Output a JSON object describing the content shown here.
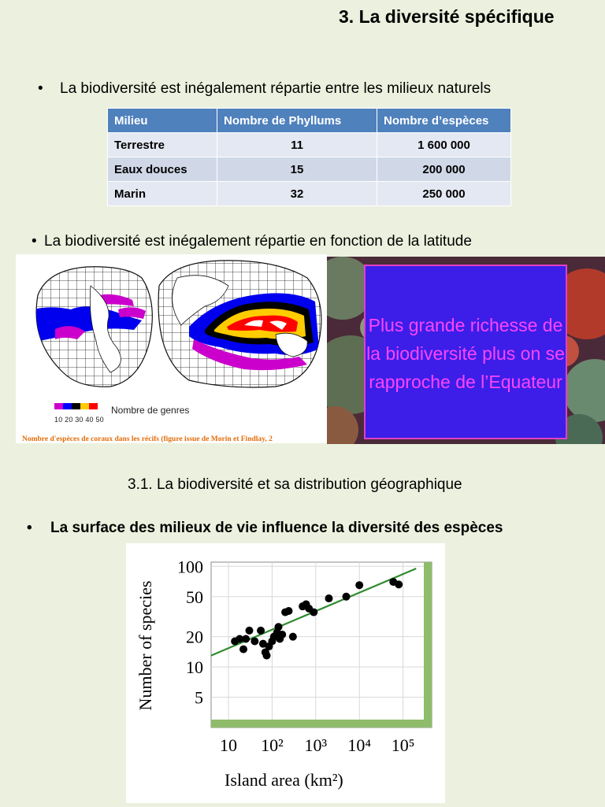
{
  "title": "3. La diversité spécifique",
  "bullets": {
    "milieux": "La biodiversité est inégalement répartie entre les milieux naturels",
    "latitude": "La biodiversité est inégalement répartie en fonction de la latitude",
    "surface": "La surface des milieux de vie influence la diversité des espèces"
  },
  "bullet_symbol": "•",
  "section_31": "3.1. La biodiversité et sa distribution géographique",
  "table": {
    "headers": [
      "Milieu",
      "Nombre de Phyllums",
      "Nombre d’espèces"
    ],
    "rows": [
      [
        "Terrestre",
        "11",
        "1 600 000"
      ],
      [
        "Eaux douces",
        "15",
        "200 000"
      ],
      [
        "Marin",
        "32",
        "250 000"
      ]
    ]
  },
  "coral_map": {
    "legend_label": "Nombre de genres",
    "legend_ticks": "10 20 30 40 50",
    "legend_colors": [
      "#cc00cc",
      "#0000ff",
      "#000000",
      "#ffcc00",
      "#ff0000"
    ],
    "caption": "Nombre d'espèces de coraux dans les récifs (figure issue de Morin et Findlay, 2"
  },
  "callout": {
    "text": "Plus grande richesse de la biodiversité plus on se rapproche de l’Equateur",
    "bg_color": "#3c1ee8",
    "text_color": "#ff44ff"
  },
  "chart_data": {
    "type": "scatter",
    "title": "",
    "xlabel": "Island area (km²)",
    "ylabel": "Number of species",
    "x_scale": "log",
    "y_scale": "log",
    "xlim": [
      4,
      300000
    ],
    "ylim": [
      3,
      110
    ],
    "x_ticks": [
      10,
      100,
      1000,
      10000,
      100000
    ],
    "x_tick_labels": [
      "10",
      "10²",
      "10³",
      "10⁴",
      "10⁵"
    ],
    "y_ticks": [
      5,
      10,
      20,
      50,
      100
    ],
    "y_tick_labels": [
      "5",
      "10",
      "20",
      "50",
      "100"
    ],
    "grid": true,
    "point_color": "#000000",
    "line_color": "#2e8b2e",
    "points": [
      [
        14,
        18
      ],
      [
        18,
        19
      ],
      [
        22,
        15
      ],
      [
        25,
        19
      ],
      [
        30,
        23
      ],
      [
        40,
        18
      ],
      [
        55,
        23
      ],
      [
        62,
        17
      ],
      [
        70,
        14
      ],
      [
        75,
        13
      ],
      [
        85,
        16
      ],
      [
        100,
        18
      ],
      [
        110,
        20
      ],
      [
        130,
        22
      ],
      [
        140,
        25
      ],
      [
        150,
        19
      ],
      [
        170,
        21
      ],
      [
        200,
        35
      ],
      [
        240,
        36
      ],
      [
        300,
        20
      ],
      [
        500,
        40
      ],
      [
        600,
        42
      ],
      [
        700,
        38
      ],
      [
        900,
        35
      ],
      [
        2000,
        48
      ],
      [
        5000,
        50
      ],
      [
        10000,
        65
      ],
      [
        60000,
        70
      ],
      [
        80000,
        66
      ]
    ],
    "trend": [
      [
        4,
        13
      ],
      [
        200000,
        95
      ]
    ]
  }
}
